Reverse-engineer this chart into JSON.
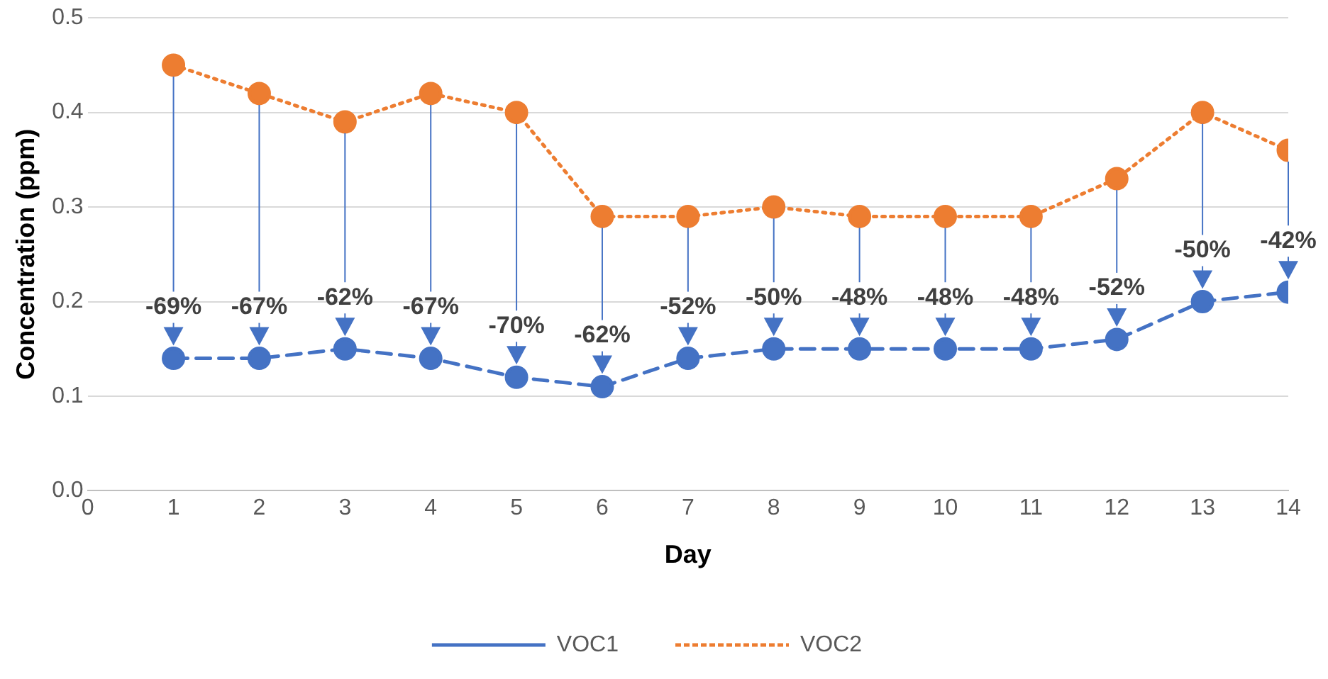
{
  "chart_data": {
    "type": "line",
    "xlabel": "Day",
    "ylabel": "Concentration (ppm)",
    "x": [
      1,
      2,
      3,
      4,
      5,
      6,
      7,
      8,
      9,
      10,
      11,
      12,
      13,
      14
    ],
    "series": [
      {
        "name": "VOC1",
        "color": "#4472c4",
        "line_style": "dashed",
        "values": [
          0.14,
          0.14,
          0.15,
          0.14,
          0.12,
          0.11,
          0.14,
          0.15,
          0.15,
          0.15,
          0.15,
          0.16,
          0.2,
          0.21
        ]
      },
      {
        "name": "VOC2",
        "color": "#ed7d31",
        "line_style": "dotted",
        "values": [
          0.45,
          0.42,
          0.39,
          0.42,
          0.4,
          0.29,
          0.29,
          0.3,
          0.29,
          0.29,
          0.29,
          0.33,
          0.4,
          0.36
        ]
      }
    ],
    "xlim": [
      0,
      14
    ],
    "xticks": [
      0,
      1,
      2,
      3,
      4,
      5,
      6,
      7,
      8,
      9,
      10,
      11,
      12,
      13,
      14
    ],
    "ylim": [
      0,
      0.5
    ],
    "yticks": [
      {
        "value": 0,
        "label": "0.0"
      },
      {
        "value": 0.1,
        "label": "0.1"
      },
      {
        "value": 0.2,
        "label": "0.2"
      },
      {
        "value": 0.3,
        "label": "0.3"
      },
      {
        "value": 0.4,
        "label": "0.4"
      },
      {
        "value": 0.5,
        "label": "0.5"
      }
    ],
    "grid": "y",
    "legend": "bottom",
    "marker": "circle",
    "annotations": [
      {
        "text": "-69%",
        "x": 1,
        "y": 0.14
      },
      {
        "text": "-67%",
        "x": 2,
        "y": 0.14
      },
      {
        "text": "-62%",
        "x": 3,
        "y": 0.15
      },
      {
        "text": "-67%",
        "x": 4,
        "y": 0.14
      },
      {
        "text": "-70%",
        "x": 5,
        "y": 0.12
      },
      {
        "text": "-62%",
        "x": 6,
        "y": 0.11
      },
      {
        "text": "-52%",
        "x": 7,
        "y": 0.14
      },
      {
        "text": "-50%",
        "x": 8,
        "y": 0.15
      },
      {
        "text": "-48%",
        "x": 9,
        "y": 0.15
      },
      {
        "text": "-48%",
        "x": 10,
        "y": 0.15
      },
      {
        "text": "-48%",
        "x": 11,
        "y": 0.15
      },
      {
        "text": "-52%",
        "x": 12,
        "y": 0.16
      },
      {
        "text": "-50%",
        "x": 13,
        "y": 0.2
      },
      {
        "text": "-42%",
        "x": 14,
        "y": 0.21
      }
    ]
  }
}
